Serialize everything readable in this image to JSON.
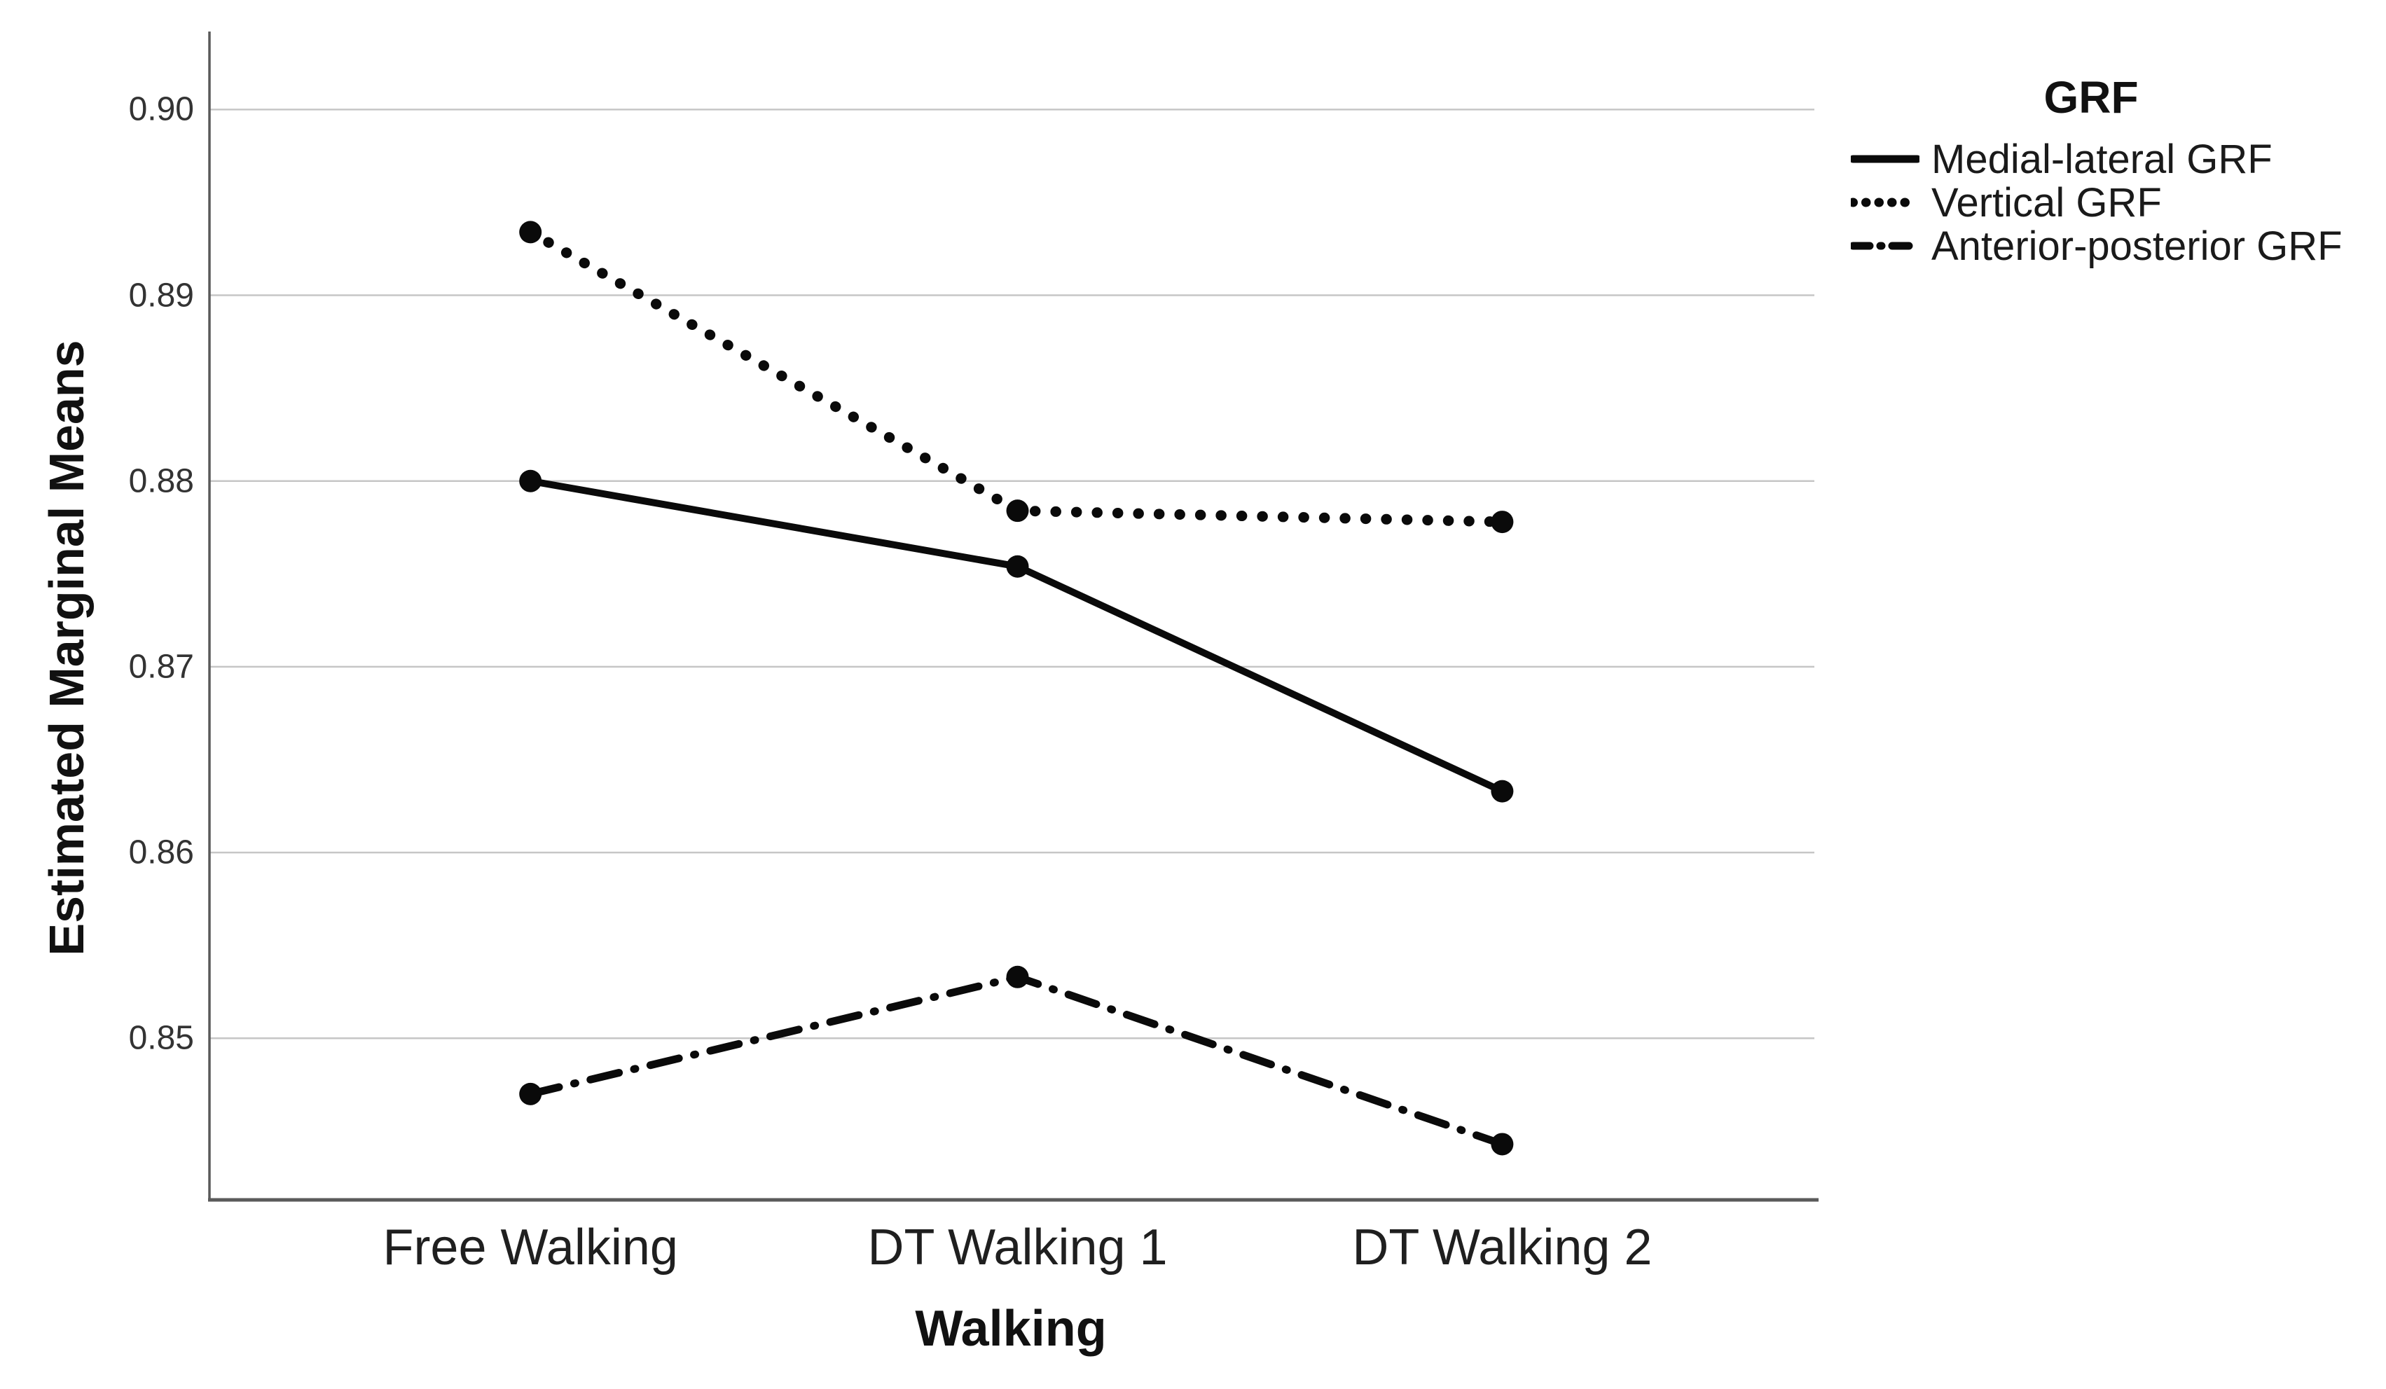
{
  "chart_data": {
    "type": "line",
    "title": "",
    "xlabel": "Walking",
    "ylabel": "Estimated Marginal Means",
    "categories": [
      "Free Walking",
      "DT Walking 1",
      "DT Walking 2"
    ],
    "series": [
      {
        "name": "Medial-lateral GRF",
        "style": "solid",
        "values": [
          0.88,
          0.8754,
          0.8633
        ]
      },
      {
        "name": "Vertical GRF",
        "style": "dotted",
        "values": [
          0.8934,
          0.8784,
          0.8778
        ]
      },
      {
        "name": "Anterior-posterior GRF",
        "style": "dash-dot",
        "values": [
          0.847,
          0.8533,
          0.8443
        ]
      }
    ],
    "yticks": [
      {
        "label": "0.90",
        "value": 0.9
      },
      {
        "label": "0.89",
        "value": 0.89
      },
      {
        "label": "0.88",
        "value": 0.88
      },
      {
        "label": "0.87",
        "value": 0.87
      },
      {
        "label": "0.86",
        "value": 0.86
      },
      {
        "label": "0.85",
        "value": 0.85
      }
    ],
    "ylim": [
      0.8413,
      0.9042
    ],
    "grid": "horizontal-gridlines-on",
    "marker": "filled-circle",
    "legend": {
      "title": "GRF",
      "position": "outside-top-right"
    },
    "colors": {
      "series": "#0a0a0a",
      "grid": "#c6c6c6",
      "axis": "#5a5a5a",
      "text": "#1a1a1a"
    }
  }
}
